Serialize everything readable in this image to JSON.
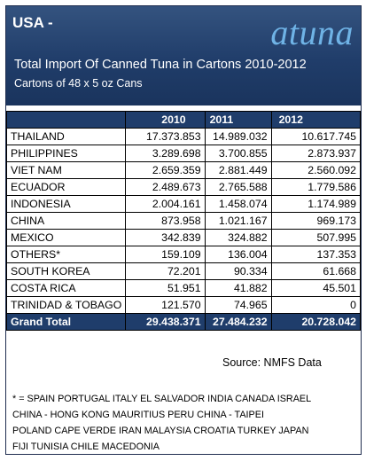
{
  "header": {
    "country": "USA -",
    "logo": "atuna",
    "title": "Total Import Of Canned Tuna in Cartons 2010-2012",
    "subtitle": "Cartons of 48 x 5  oz Cans"
  },
  "table": {
    "columns": [
      "",
      "2010",
      "2011",
      "2012"
    ],
    "rows": [
      {
        "country": "THAILAND",
        "y2010": "17.373.853",
        "y2011": "14.989.032",
        "y2012": "10.617.745"
      },
      {
        "country": "PHILIPPINES",
        "y2010": "3.289.698",
        "y2011": "3.700.855",
        "y2012": "2.873.937"
      },
      {
        "country": "VIET NAM",
        "y2010": "2.659.359",
        "y2011": "2.881.449",
        "y2012": "2.560.092"
      },
      {
        "country": "ECUADOR",
        "y2010": "2.489.673",
        "y2011": "2.765.588",
        "y2012": "1.779.586"
      },
      {
        "country": "INDONESIA",
        "y2010": "2.004.161",
        "y2011": "1.458.074",
        "y2012": "1.174.989"
      },
      {
        "country": "CHINA",
        "y2010": "873.958",
        "y2011": "1.021.167",
        "y2012": "969.173"
      },
      {
        "country": "MEXICO",
        "y2010": "342.839",
        "y2011": "324.882",
        "y2012": "507.995"
      },
      {
        "country": "OTHERS*",
        "y2010": "159.109",
        "y2011": "136.004",
        "y2012": "137.353"
      },
      {
        "country": "SOUTH KOREA",
        "y2010": "72.201",
        "y2011": "90.334",
        "y2012": "61.668"
      },
      {
        "country": "COSTA RICA",
        "y2010": "51.951",
        "y2011": "41.882",
        "y2012": "45.501"
      },
      {
        "country": "TRINIDAD & TOBAGO",
        "y2010": "121.570",
        "y2011": "74.965",
        "y2012": "0"
      }
    ],
    "total": {
      "label": "Grand Total",
      "y2010": "29.438.371",
      "y2011": "27.484.232",
      "y2012": "20.728.042"
    }
  },
  "source": "Source: NMFS Data",
  "footnote": "* = SPAIN PORTUGAL ITALY EL SALVADOR INDIA CANADA ISRAEL\nCHINA - HONG KONG MAURITIUS PERU CHINA - TAIPEI\nPOLAND CAPE VERDE IRAN MALAYSIA CROATIA TURKEY JAPAN\nFIJI TUNISIA CHILE MACEDONIA"
}
